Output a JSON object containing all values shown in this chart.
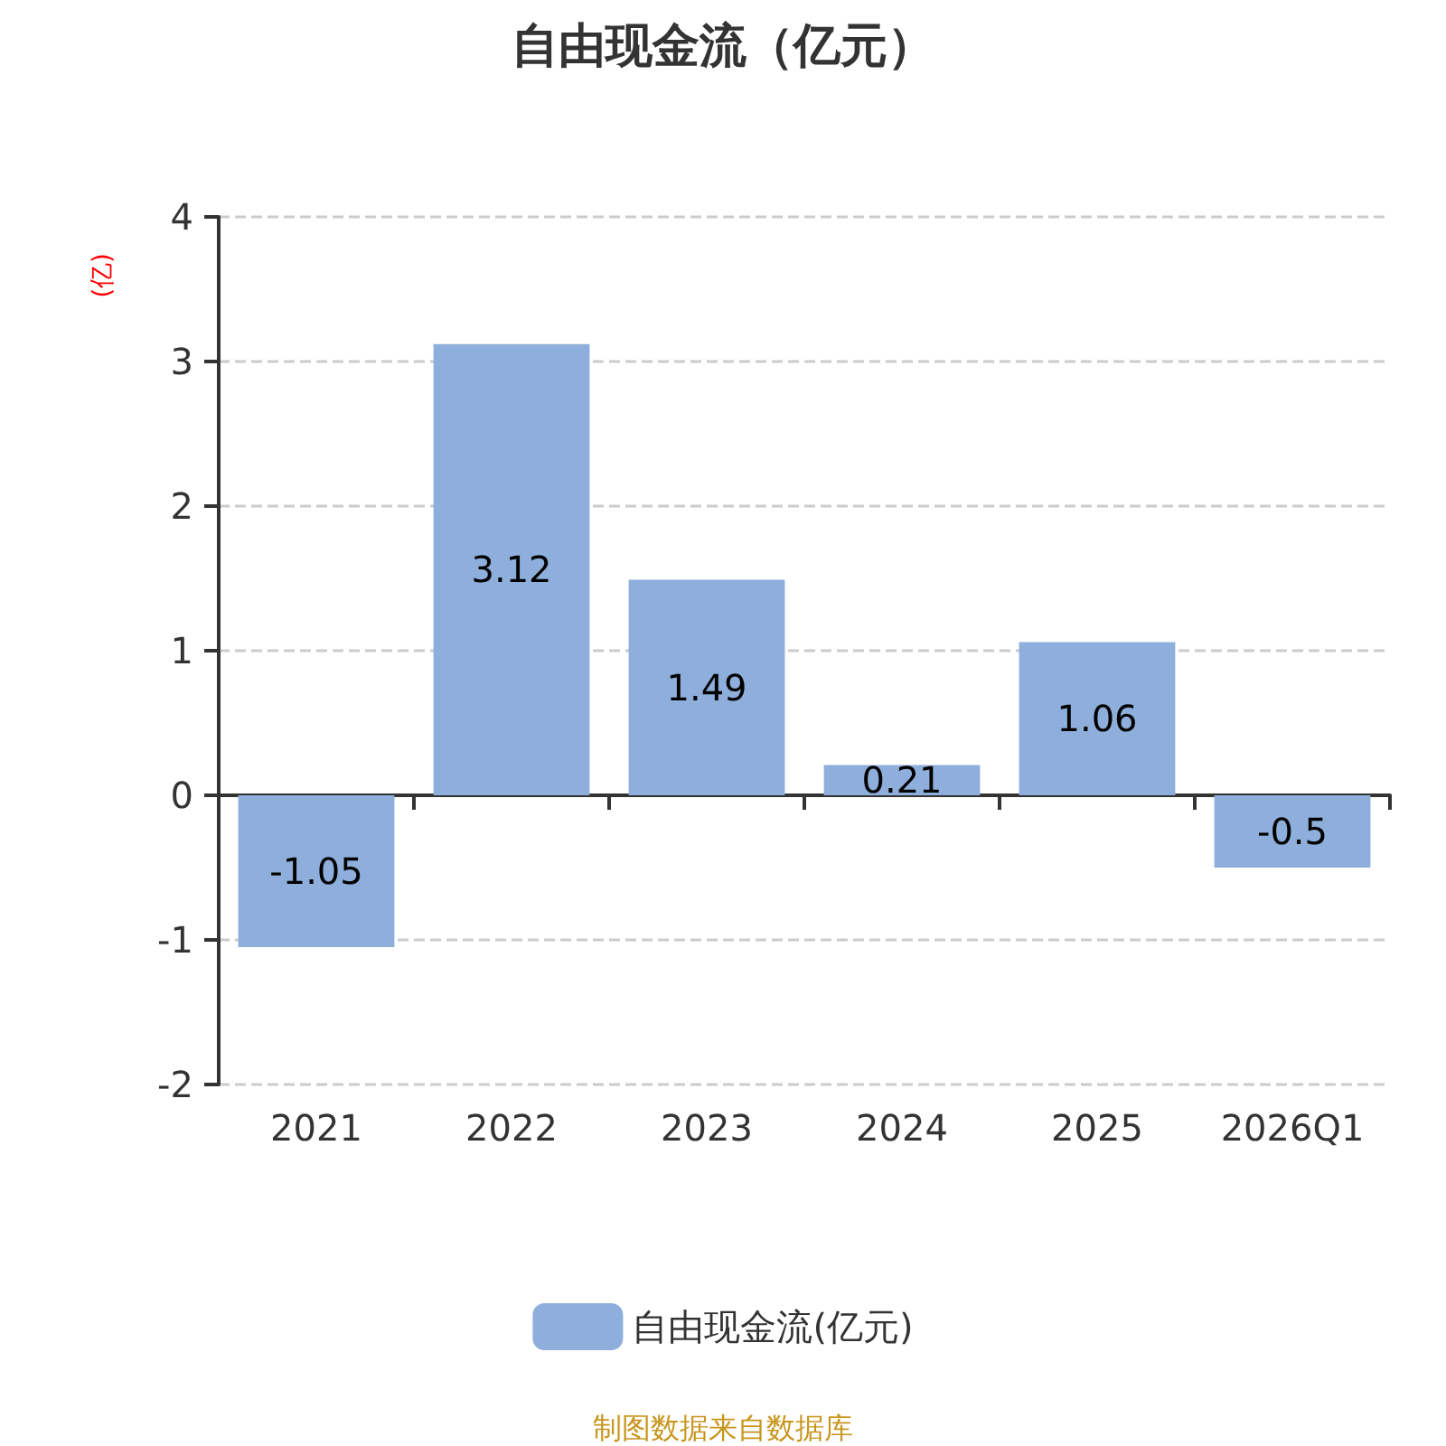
{
  "chart_data": {
    "type": "bar",
    "title": "自由现金流（亿元）",
    "ylabel": "(亿)",
    "categories": [
      "2021",
      "2022",
      "2023",
      "2024",
      "2025",
      "2026Q1"
    ],
    "series": [
      {
        "name": "自由现金流(亿元)",
        "color": "#8eaedb",
        "values": [
          -1.05,
          3.12,
          1.49,
          0.21,
          1.06,
          -0.5
        ]
      }
    ],
    "ylim": [
      -2,
      4
    ],
    "yticks": [
      -2,
      -1,
      0,
      1,
      2,
      3,
      4
    ],
    "grid": "y",
    "legend": "bottom",
    "data_labels": true,
    "annotations": [
      "制图数据来自数据库"
    ]
  }
}
